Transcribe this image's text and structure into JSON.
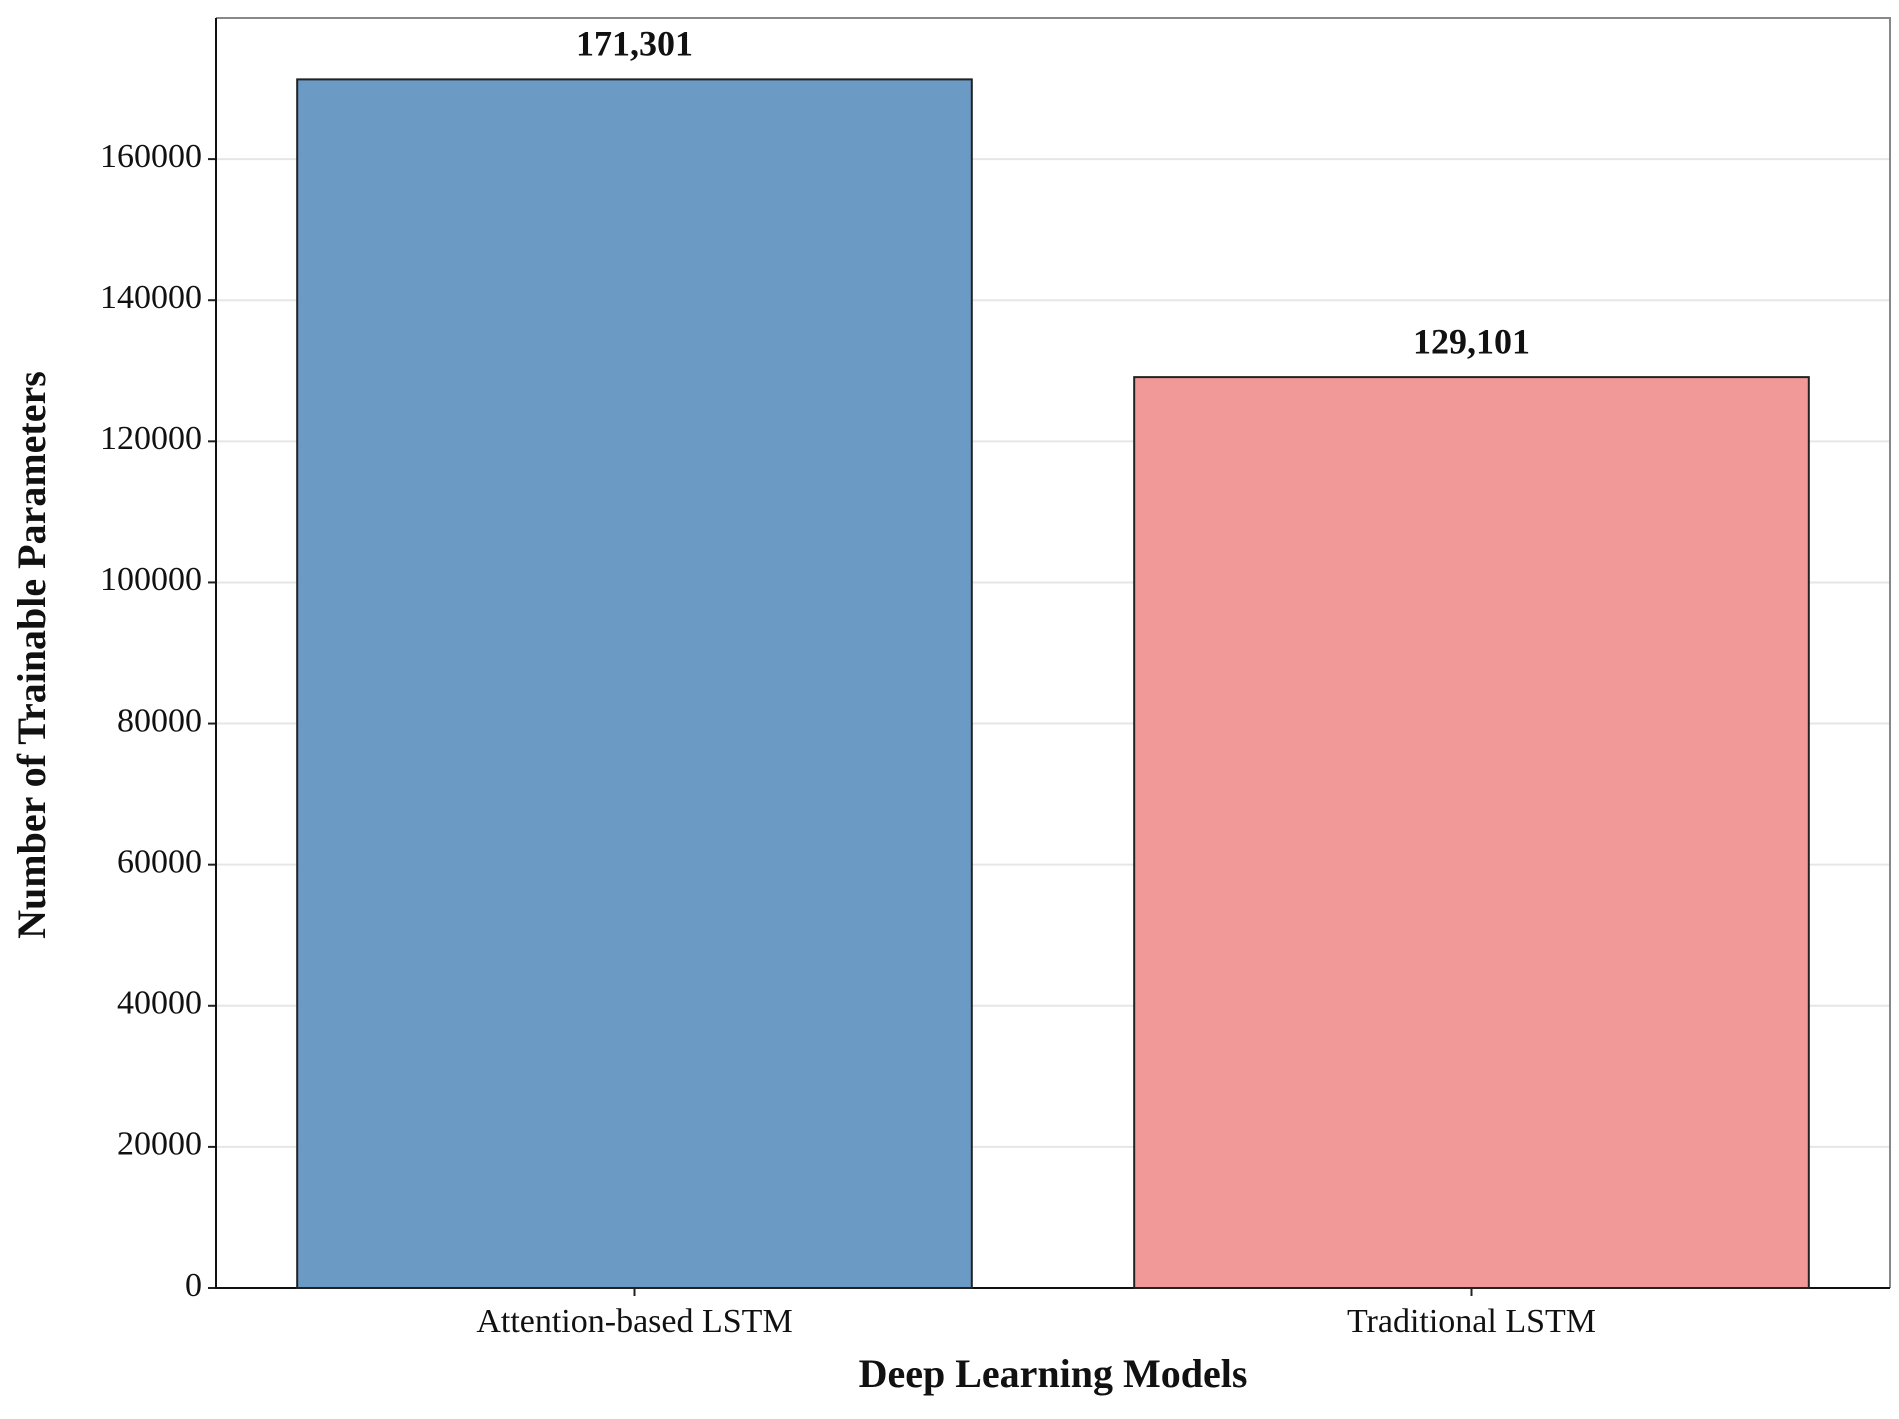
{
  "chart_data": {
    "type": "bar",
    "x_label": "Deep Learning Models",
    "y_label": "Number of Trainable Parameters",
    "categories": [
      "Attention-based LSTM",
      "Traditional LSTM"
    ],
    "values": [
      171301,
      129101
    ],
    "value_labels": [
      "171,301",
      "129,101"
    ],
    "colors": [
      "#6b9ac4",
      "#f19898"
    ],
    "ylim": [
      0,
      180000
    ],
    "yticks": [
      0,
      20000,
      40000,
      60000,
      80000,
      100000,
      120000,
      140000,
      160000
    ],
    "grid": true
  }
}
